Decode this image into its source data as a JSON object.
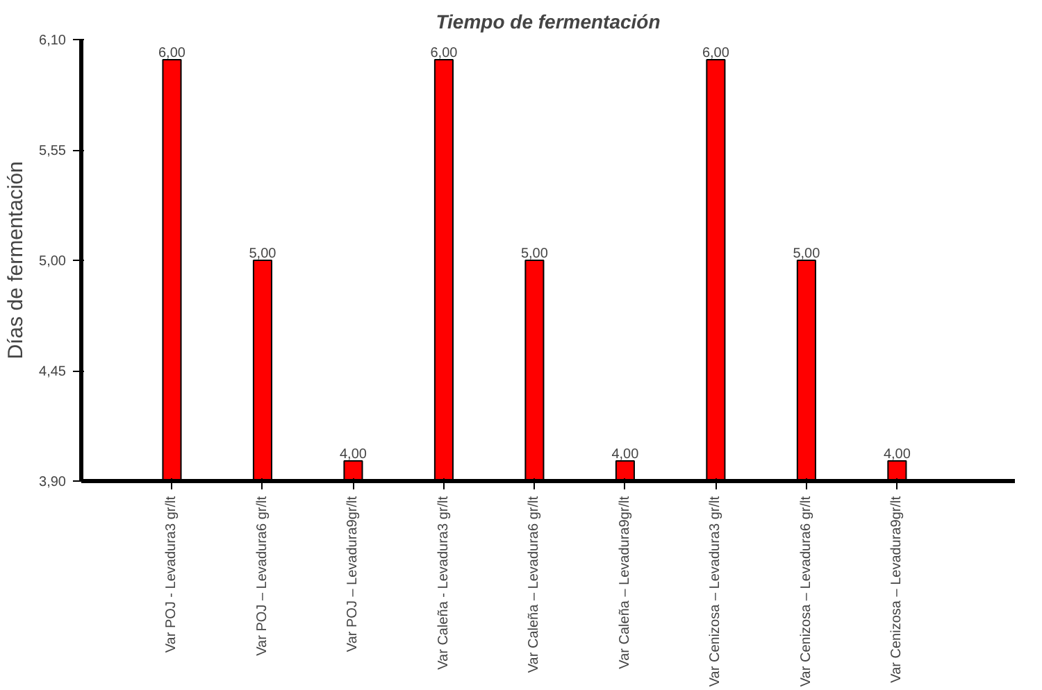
{
  "chart_data": {
    "type": "bar",
    "title": "Tiempo de fermentación",
    "ylabel": "Días de fermentación",
    "categories": [
      "Var POJ - Levadura3 gr/lt",
      "Var POJ – Levadura6 gr/lt",
      "Var POJ – Levadura9gr/lt",
      "Var Caleña - Levadura3 gr/lt",
      "Var Caleña – Levadura6 gr/lt",
      "Var Caleña – Levadura9gr/lt",
      "Var Cenizosa – Levadura3 gr/lt",
      "Var Cenizosa – Levadura6 gr/lt",
      "Var Cenizosa – Levadura9gr/lt"
    ],
    "values": [
      6.0,
      5.0,
      4.0,
      6.0,
      5.0,
      4.0,
      6.0,
      5.0,
      4.0
    ],
    "color": "#ff0000",
    "ylim": [
      3.9,
      6.1
    ],
    "yticks": [
      {
        "value": 3.9,
        "label": "3,90"
      },
      {
        "value": 4.45,
        "label": "4,45"
      },
      {
        "value": 5.0,
        "label": "5,00"
      },
      {
        "value": 5.55,
        "label": "5,55"
      },
      {
        "value": 6.1,
        "label": "6,10"
      }
    ],
    "value_labels": [
      "6,00",
      "5,00",
      "4,00",
      "6,00",
      "5,00",
      "4,00",
      "6,00",
      "5,00",
      "4,00"
    ],
    "grid": false
  }
}
